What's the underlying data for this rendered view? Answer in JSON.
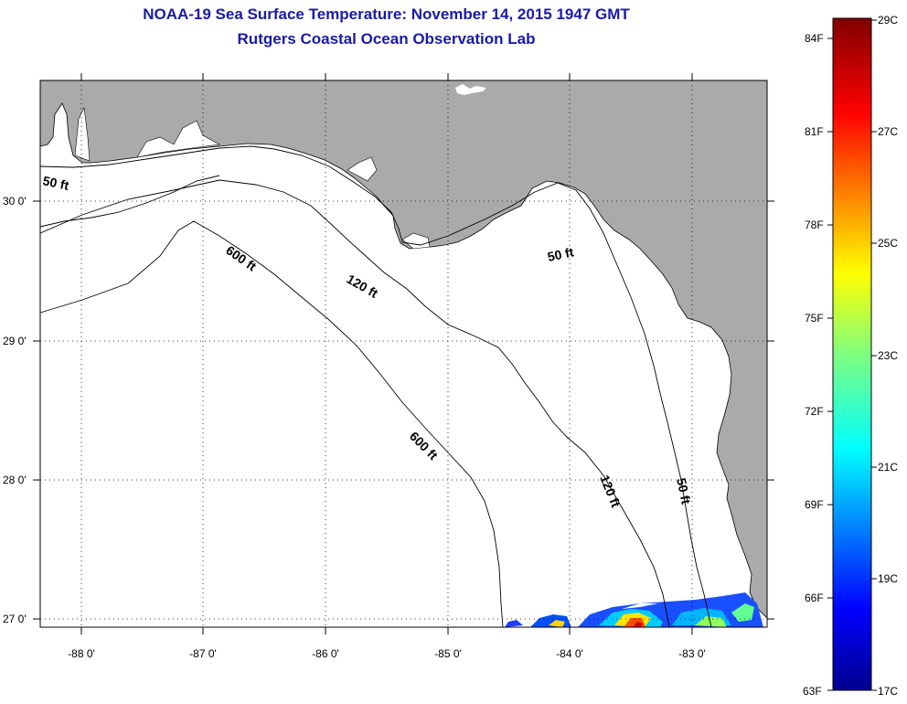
{
  "header": {
    "title": "NOAA-19 Sea Surface Temperature:  November 14, 2015 1947 GMT",
    "subtitle": "Rutgers Coastal Ocean Observation Lab"
  },
  "map": {
    "lon_ticks": [
      "-88 0'",
      "-87 0'",
      "-86 0'",
      "-85 0'",
      "-84 0'",
      "-83 0'"
    ],
    "lat_ticks": [
      "30 0'",
      "29 0'",
      "28 0'",
      "27 0'"
    ],
    "contours": {
      "c50_west": "50 ft",
      "c600_north": "600 ft",
      "c120_north": "120 ft",
      "c50_east": "50 ft",
      "c600_south": "600 ft",
      "c120_south": "120 ft",
      "c50_south": "50 ft"
    },
    "colors": {
      "land": "#aaaaaa",
      "water": "#ffffff",
      "title": "#1a1aa6"
    }
  },
  "colorbar": {
    "f_labels": [
      "84F",
      "81F",
      "78F",
      "75F",
      "72F",
      "69F",
      "66F",
      "63F"
    ],
    "c_labels": [
      "29C",
      "27C",
      "25C",
      "23C",
      "21C",
      "19C",
      "17C"
    ]
  }
}
